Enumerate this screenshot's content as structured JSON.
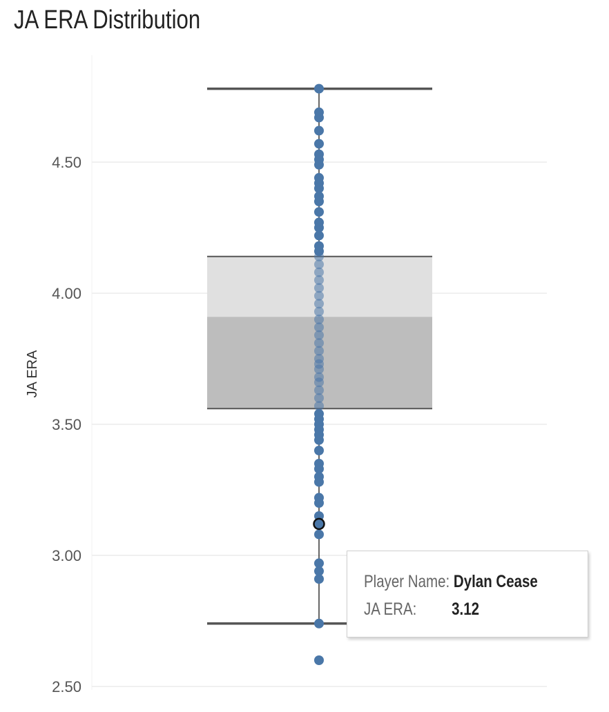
{
  "title": "JA ERA Distribution",
  "chart_data": {
    "type": "boxplot",
    "ylabel": "JA ERA",
    "ylim": [
      2.48,
      4.83
    ],
    "yticks": [
      "4.50",
      "4.00",
      "3.50",
      "3.00",
      "2.50"
    ],
    "ytick_values": [
      4.5,
      4.0,
      3.5,
      3.0,
      2.5
    ],
    "box": {
      "whisker_high": 4.78,
      "q3": 4.14,
      "median": 3.91,
      "q1": 3.56,
      "whisker_low": 2.74
    },
    "points": [
      4.78,
      4.69,
      4.67,
      4.62,
      4.57,
      4.53,
      4.51,
      4.49,
      4.44,
      4.42,
      4.4,
      4.37,
      4.35,
      4.31,
      4.27,
      4.25,
      4.22,
      4.18,
      4.16,
      4.14,
      4.11,
      4.08,
      4.05,
      4.02,
      3.99,
      3.96,
      3.93,
      3.9,
      3.87,
      3.84,
      3.81,
      3.78,
      3.75,
      3.73,
      3.71,
      3.68,
      3.66,
      3.63,
      3.6,
      3.57,
      3.54,
      3.52,
      3.5,
      3.48,
      3.46,
      3.44,
      3.4,
      3.35,
      3.33,
      3.3,
      3.28,
      3.22,
      3.2,
      3.15,
      3.08,
      2.97,
      2.94,
      2.91,
      2.74,
      2.6
    ],
    "highlight": {
      "name": "Dylan Cease",
      "value": 3.12
    },
    "colors": {
      "point": "#4a77a8",
      "box_upper": "#e0e0e0",
      "box_lower": "#bdbdbd",
      "whisker": "#555555",
      "grid": "#ececec"
    }
  },
  "tooltip": {
    "name_label": "Player Name:",
    "name_value": "Dylan Cease",
    "era_label": "JA ERA:",
    "era_value": "3.12"
  }
}
